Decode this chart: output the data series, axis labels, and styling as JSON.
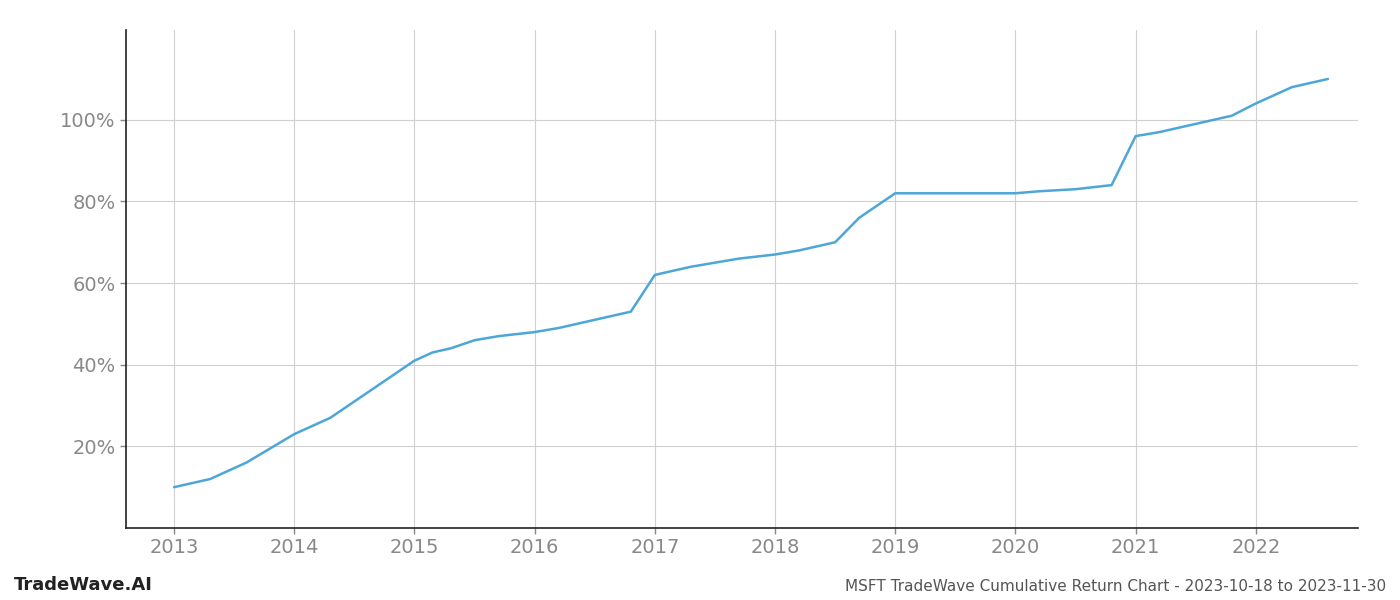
{
  "title": "MSFT TradeWave Cumulative Return Chart - 2023-10-18 to 2023-11-30",
  "watermark": "TradeWave.AI",
  "line_color": "#4da6d8",
  "background_color": "#ffffff",
  "grid_color": "#d0d0d0",
  "x_values": [
    2013.0,
    2013.3,
    2013.6,
    2014.0,
    2014.3,
    2014.6,
    2015.0,
    2015.15,
    2015.3,
    2015.5,
    2015.7,
    2016.0,
    2016.2,
    2016.5,
    2016.8,
    2017.0,
    2017.15,
    2017.3,
    2017.5,
    2017.7,
    2018.0,
    2018.2,
    2018.5,
    2018.7,
    2019.0,
    2019.1,
    2019.3,
    2019.5,
    2019.8,
    2020.0,
    2020.2,
    2020.5,
    2020.8,
    2021.0,
    2021.2,
    2021.5,
    2021.8,
    2022.0,
    2022.3,
    2022.6
  ],
  "y_values": [
    10,
    12,
    16,
    23,
    27,
    33,
    41,
    43,
    44,
    46,
    47,
    48,
    49,
    51,
    53,
    62,
    63,
    64,
    65,
    66,
    67,
    68,
    70,
    76,
    82,
    82,
    82,
    82,
    82,
    82,
    82.5,
    83,
    84,
    96,
    97,
    99,
    101,
    104,
    108,
    110
  ],
  "xlim": [
    2012.6,
    2022.85
  ],
  "ylim": [
    0,
    122
  ],
  "yticks": [
    20,
    40,
    60,
    80,
    100
  ],
  "xticks": [
    2013,
    2014,
    2015,
    2016,
    2017,
    2018,
    2019,
    2020,
    2021,
    2022
  ],
  "tick_label_color": "#888888",
  "label_fontsize": 14,
  "watermark_fontsize": 13,
  "title_fontsize": 11,
  "line_width": 1.8,
  "spine_color": "#222222"
}
